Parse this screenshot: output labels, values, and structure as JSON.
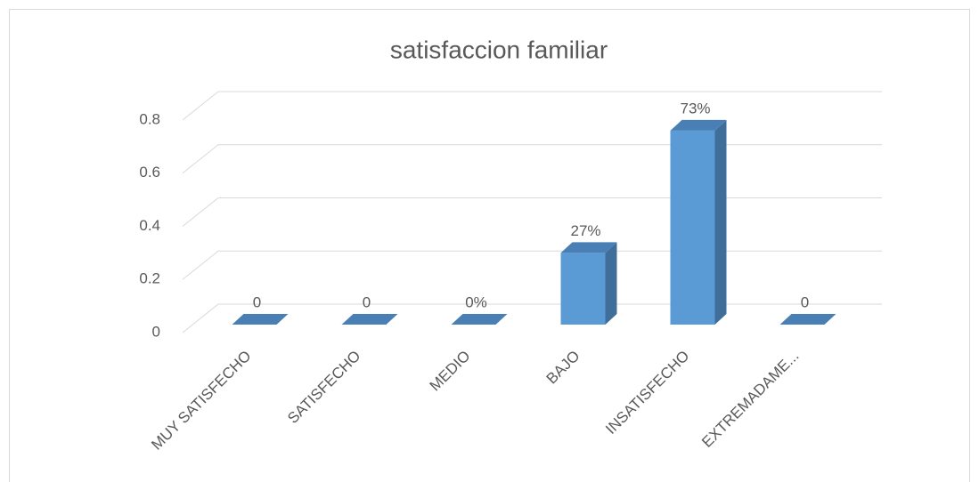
{
  "chart_data": {
    "type": "bar3d",
    "title": "satisfaccion familiar",
    "categories": [
      "MUY SATISFECHO",
      "SATISFECHO",
      "MEDIO",
      "BAJO",
      "INSATISFECHO",
      "EXTREMADAME..."
    ],
    "values": [
      0,
      0,
      0,
      0.27,
      0.73,
      0
    ],
    "value_labels": [
      "0",
      "0",
      "0%",
      "27%",
      "73%",
      "0"
    ],
    "color": "#5b9bd5",
    "ylim": [
      0,
      0.8
    ],
    "yticks": [
      0,
      0.2,
      0.4,
      0.6,
      0.8
    ],
    "grid": true
  }
}
